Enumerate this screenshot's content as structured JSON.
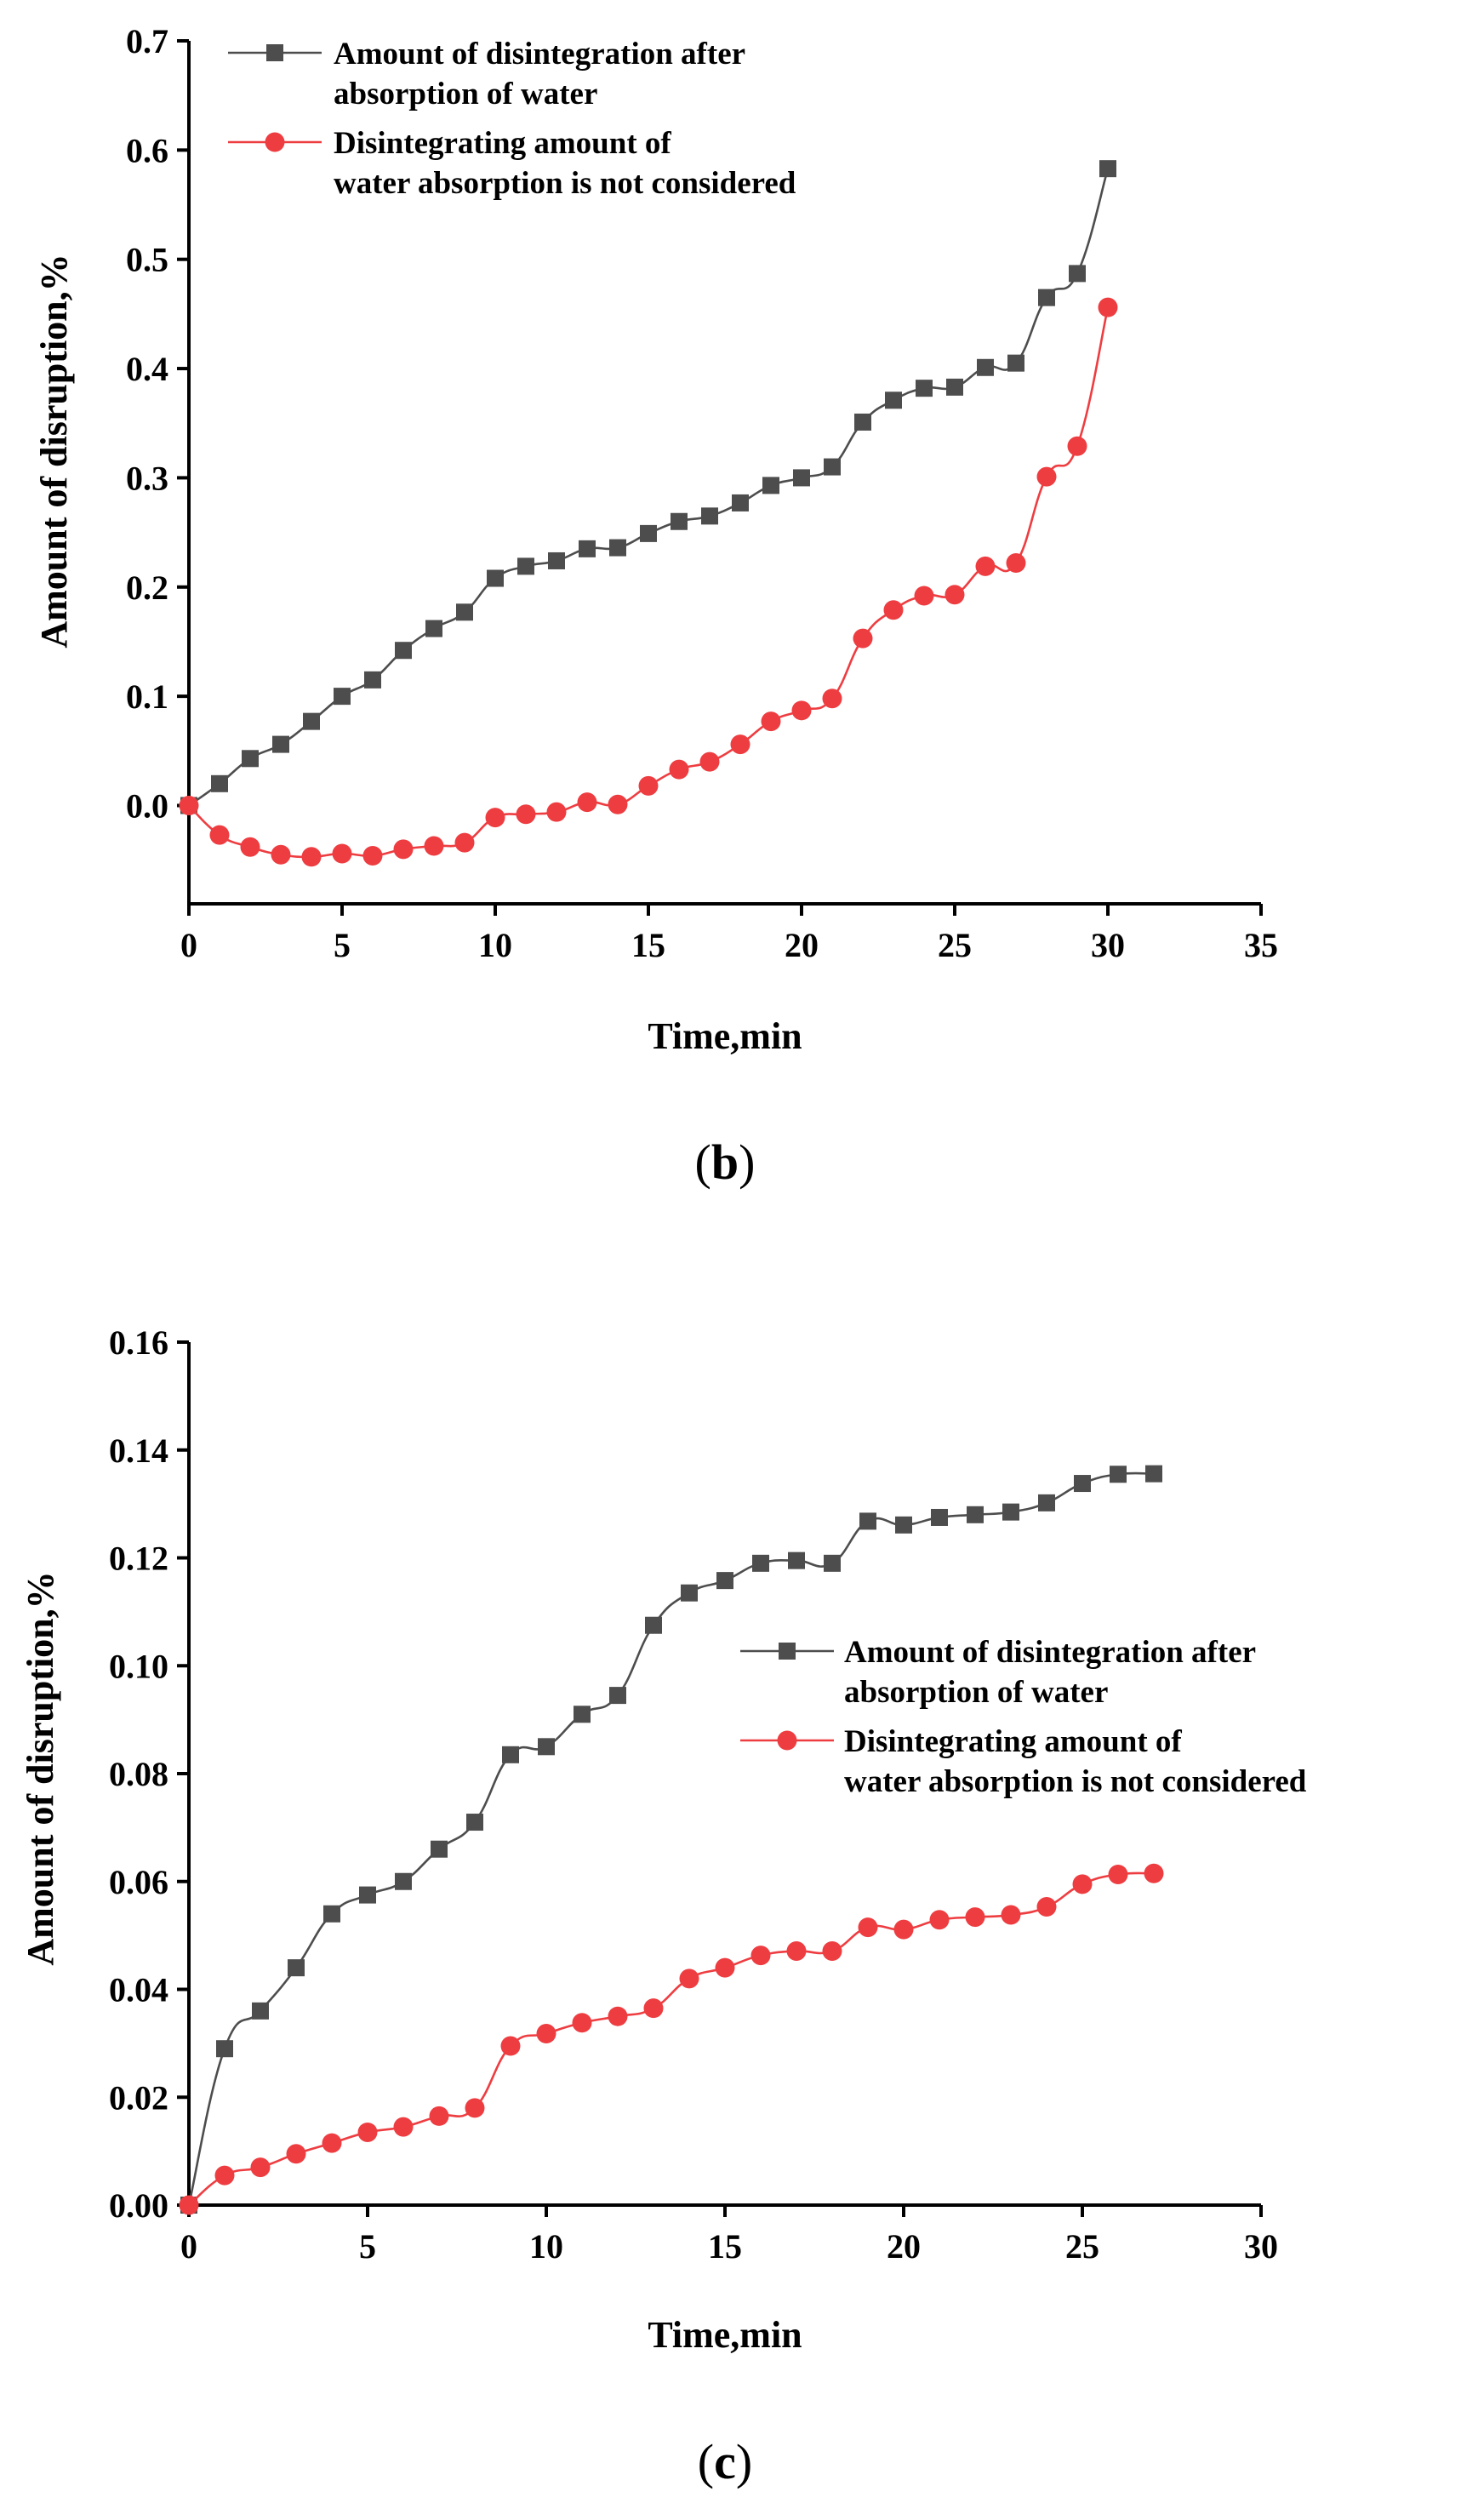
{
  "colors": {
    "series_absorbed": "#4d4d4d",
    "series_not_considered": "#ee3d41",
    "axis": "#000000"
  },
  "chart_data": [
    {
      "panel_label_open": "(",
      "panel_label_letter": "b",
      "panel_label_close": ")",
      "type": "line",
      "title": "",
      "xlabel": "Time,min",
      "ylabel": "Amount of disruption,%",
      "xlim": [
        0,
        35
      ],
      "ylim": [
        -0.09,
        0.7
      ],
      "xticks": [
        0,
        5,
        10,
        15,
        20,
        25,
        30,
        35
      ],
      "xtick_labels": [
        "0",
        "5",
        "10",
        "15",
        "20",
        "25",
        "30",
        "35"
      ],
      "yticks": [
        0.0,
        0.1,
        0.2,
        0.3,
        0.4,
        0.5,
        0.6,
        0.7
      ],
      "ytick_labels": [
        "0.0",
        "0.1",
        "0.2",
        "0.3",
        "0.4",
        "0.5",
        "0.6",
        "0.7"
      ],
      "legend_position": "top-left",
      "grid": false,
      "series": [
        {
          "name_lines": [
            "Amount of disintegration after",
            "absorption of water"
          ],
          "marker": "square",
          "color": "#4d4d4d",
          "x": [
            0,
            1,
            2,
            3,
            4,
            5,
            6,
            7,
            8,
            9,
            10,
            11,
            12,
            13,
            14,
            15,
            16,
            17,
            18,
            19,
            20,
            21,
            22,
            23,
            24,
            25,
            26,
            27,
            28,
            29,
            30
          ],
          "values": [
            0.0,
            0.02,
            0.043,
            0.056,
            0.077,
            0.1,
            0.115,
            0.142,
            0.162,
            0.177,
            0.208,
            0.219,
            0.224,
            0.235,
            0.236,
            0.249,
            0.26,
            0.265,
            0.277,
            0.293,
            0.3,
            0.31,
            0.351,
            0.371,
            0.382,
            0.383,
            0.401,
            0.405,
            0.465,
            0.487,
            0.583
          ]
        },
        {
          "name_lines": [
            "Disintegrating amount of",
            "water absorption is not considered"
          ],
          "marker": "circle",
          "color": "#ee3d41",
          "x": [
            0,
            1,
            2,
            3,
            4,
            5,
            6,
            7,
            8,
            9,
            10,
            11,
            12,
            13,
            14,
            15,
            16,
            17,
            18,
            19,
            20,
            21,
            22,
            23,
            24,
            25,
            26,
            27,
            28,
            29,
            30
          ],
          "values": [
            0.0,
            -0.027,
            -0.038,
            -0.045,
            -0.047,
            -0.044,
            -0.046,
            -0.04,
            -0.037,
            -0.034,
            -0.011,
            -0.008,
            -0.006,
            0.003,
            0.001,
            0.018,
            0.033,
            0.04,
            0.056,
            0.077,
            0.087,
            0.098,
            0.153,
            0.179,
            0.192,
            0.193,
            0.219,
            0.222,
            0.301,
            0.329,
            0.456
          ]
        }
      ]
    },
    {
      "panel_label_open": "(",
      "panel_label_letter": "c",
      "panel_label_close": ")",
      "type": "line",
      "title": "",
      "xlabel": "Time,min",
      "ylabel": "Amount of disruption,%",
      "xlim": [
        0,
        30
      ],
      "ylim": [
        0,
        0.16
      ],
      "xticks": [
        0,
        5,
        10,
        15,
        20,
        25,
        30
      ],
      "xtick_labels": [
        "0",
        "5",
        "10",
        "15",
        "20",
        "25",
        "30"
      ],
      "yticks": [
        0.0,
        0.02,
        0.04,
        0.06,
        0.08,
        0.1,
        0.12,
        0.14,
        0.16
      ],
      "ytick_labels": [
        "0.00",
        "0.02",
        "0.04",
        "0.06",
        "0.08",
        "0.10",
        "0.12",
        "0.14",
        "0.16"
      ],
      "legend_position": "center-right",
      "grid": false,
      "series": [
        {
          "name_lines": [
            "Amount of disintegration after",
            "absorption of water"
          ],
          "marker": "square",
          "color": "#4d4d4d",
          "x": [
            0,
            1,
            2,
            3,
            4,
            5,
            6,
            7,
            8,
            9,
            10,
            11,
            12,
            13,
            14,
            15,
            16,
            17,
            18,
            19,
            20,
            21,
            22,
            23,
            24,
            25,
            26,
            27
          ],
          "values": [
            0.0,
            0.029,
            0.036,
            0.044,
            0.054,
            0.0575,
            0.06,
            0.066,
            0.071,
            0.0835,
            0.085,
            0.091,
            0.0945,
            0.1075,
            0.1135,
            0.1158,
            0.119,
            0.1195,
            0.119,
            0.1268,
            0.1261,
            0.1275,
            0.128,
            0.1285,
            0.1302,
            0.1338,
            0.1355,
            0.1356
          ]
        },
        {
          "name_lines": [
            "Disintegrating amount of",
            "water absorption is not considered"
          ],
          "marker": "circle",
          "color": "#ee3d41",
          "x": [
            0,
            1,
            2,
            3,
            4,
            5,
            6,
            7,
            8,
            9,
            10,
            11,
            12,
            13,
            14,
            15,
            16,
            17,
            18,
            19,
            20,
            21,
            22,
            23,
            24,
            25,
            26,
            27
          ],
          "values": [
            0.0,
            0.0055,
            0.007,
            0.0095,
            0.0115,
            0.0135,
            0.0145,
            0.0165,
            0.018,
            0.0295,
            0.0318,
            0.0338,
            0.035,
            0.0365,
            0.042,
            0.044,
            0.0463,
            0.0471,
            0.0471,
            0.0515,
            0.0511,
            0.0529,
            0.0534,
            0.0538,
            0.0553,
            0.0595,
            0.0613,
            0.0615
          ]
        }
      ]
    }
  ]
}
